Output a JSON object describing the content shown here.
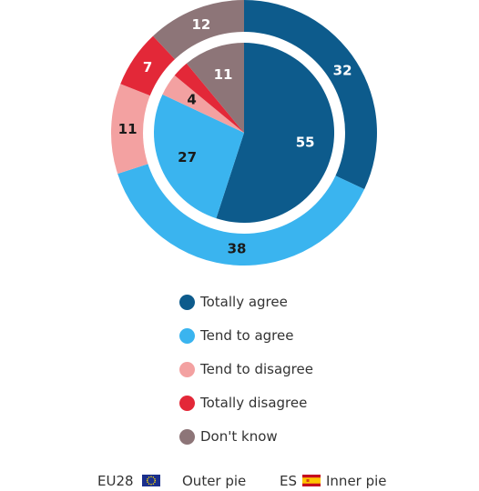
{
  "chart_data": {
    "type": "pie",
    "categories": [
      "Totally agree",
      "Tend to agree",
      "Tend to disagree",
      "Totally disagree",
      "Don't know"
    ],
    "series": [
      {
        "name": "EU28 Outer pie",
        "values": [
          32,
          38,
          11,
          7,
          12
        ]
      },
      {
        "name": "ES Inner pie",
        "values": [
          55,
          27,
          4,
          3,
          11
        ]
      }
    ],
    "legend_position": "bottom"
  },
  "colors": [
    "#0d5b8c",
    "#3ab4ef",
    "#f3a1a1",
    "#e32838",
    "#8d7578"
  ],
  "legend": {
    "items": [
      "Totally agree",
      "Tend to agree",
      "Tend to disagree",
      "Totally disagree",
      "Don't know"
    ]
  },
  "footer": {
    "eu_label": "EU28",
    "outer_label": "Outer pie",
    "es_label": "ES",
    "inner_label": "Inner pie"
  },
  "flags": {
    "eu": "eu-flag-icon",
    "es": "es-flag-icon"
  }
}
